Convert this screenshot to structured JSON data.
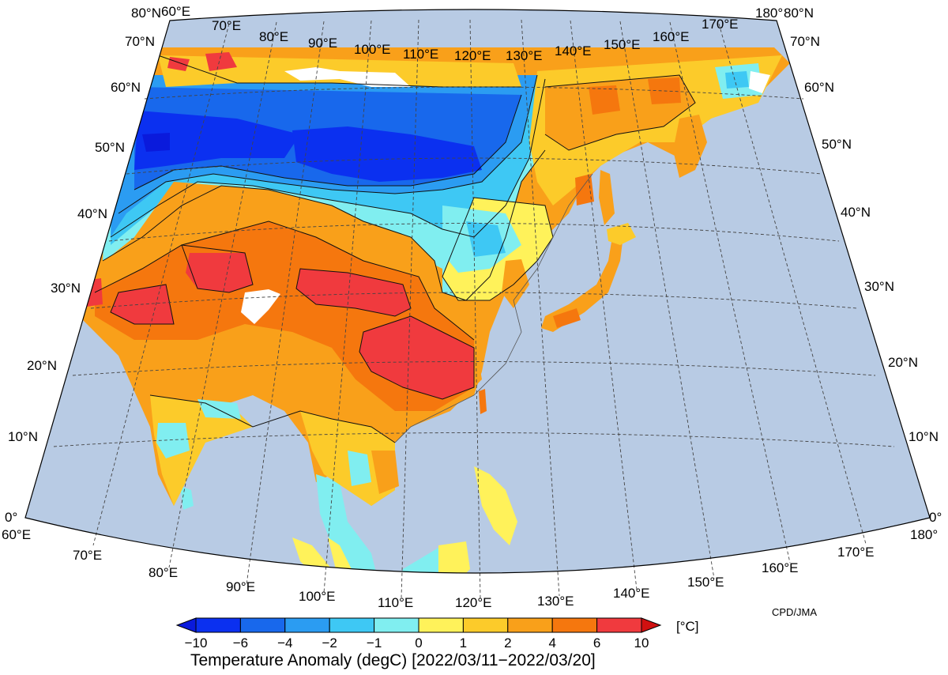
{
  "title": "Temperature Anomaly (degC) [2022/03/11−2022/03/20]",
  "credit": "CPD/JMA",
  "unit": "[°C]",
  "colors": {
    "ocean": "#b8cbe4",
    "missing": "#ffffff",
    "outline": "#000000"
  },
  "colorbar": {
    "ticks": [
      "−10",
      "−6",
      "−4",
      "−2",
      "−1",
      "0",
      "1",
      "2",
      "4",
      "6",
      "10"
    ],
    "bins": [
      {
        "from": "-inf",
        "to": -10,
        "color": "#0a1adc"
      },
      {
        "from": -10,
        "to": -6,
        "color": "#0b30f0"
      },
      {
        "from": -6,
        "to": -4,
        "color": "#1868ec"
      },
      {
        "from": -4,
        "to": -2,
        "color": "#2b9cf2"
      },
      {
        "from": -2,
        "to": -1,
        "color": "#3ec8f4"
      },
      {
        "from": -1,
        "to": 0,
        "color": "#80eef0"
      },
      {
        "from": 0,
        "to": 1,
        "color": "#fff25a"
      },
      {
        "from": 1,
        "to": 2,
        "color": "#fccb2a"
      },
      {
        "from": 2,
        "to": 4,
        "color": "#f9a01a"
      },
      {
        "from": 4,
        "to": 6,
        "color": "#f5770e"
      },
      {
        "from": 6,
        "to": 10,
        "color": "#f03a3e"
      },
      {
        "from": 10,
        "to": "inf",
        "color": "#d01010"
      }
    ]
  },
  "graticule": {
    "left_lat_labels": [
      "80°N",
      "70°N",
      "60°N",
      "50°N",
      "40°N",
      "30°N",
      "20°N",
      "10°N",
      "0°"
    ],
    "right_lat_labels": [
      "80°N",
      "70°N",
      "60°N",
      "50°N",
      "40°N",
      "30°N",
      "20°N",
      "10°N",
      "0°"
    ],
    "top_lon_labels": [
      "60°E",
      "70°E",
      "80°E",
      "90°E",
      "100°E",
      "110°E",
      "120°E",
      "130°E",
      "140°E",
      "150°E",
      "160°E",
      "170°E",
      "180°"
    ],
    "bottom_lon_labels": [
      "60°E",
      "70°E",
      "80°E",
      "90°E",
      "100°E",
      "110°E",
      "120°E",
      "130°E",
      "140°E",
      "150°E",
      "160°E",
      "170°E",
      "180°"
    ]
  }
}
